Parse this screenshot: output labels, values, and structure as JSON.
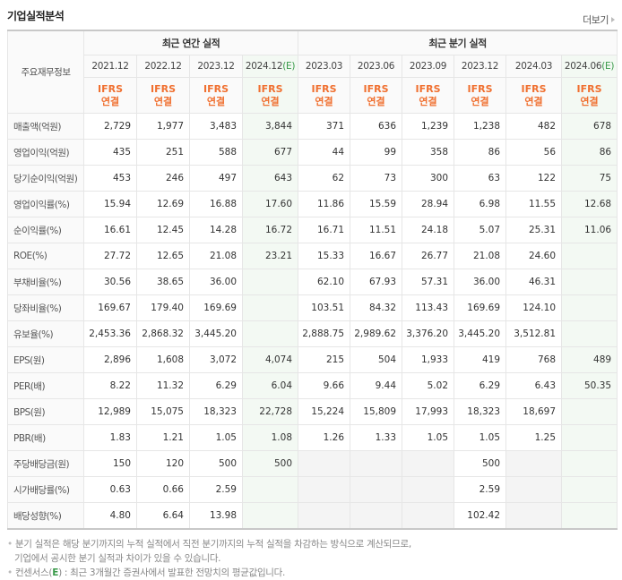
{
  "header": {
    "title": "기업실적분석",
    "more_label": "더보기"
  },
  "table": {
    "label_header": "주요재무정보",
    "groups": {
      "annual": "최근 연간 실적",
      "quarterly": "최근 분기 실적"
    },
    "annual_periods": [
      {
        "date": "2021.12",
        "est": ""
      },
      {
        "date": "2022.12",
        "est": ""
      },
      {
        "date": "2023.12",
        "est": ""
      },
      {
        "date": "2024.12",
        "est": "(E)"
      }
    ],
    "quarterly_periods": [
      {
        "date": "2023.03",
        "est": ""
      },
      {
        "date": "2023.06",
        "est": ""
      },
      {
        "date": "2023.09",
        "est": ""
      },
      {
        "date": "2023.12",
        "est": ""
      },
      {
        "date": "2024.03",
        "est": ""
      },
      {
        "date": "2024.06",
        "est": "(E)"
      }
    ],
    "ifrs_label": "IFRS",
    "basis_label": "연결",
    "rows": [
      {
        "label": "매출액(억원)",
        "v": [
          "2,729",
          "1,977",
          "3,483",
          "3,844",
          "371",
          "636",
          "1,239",
          "1,238",
          "482",
          "678"
        ]
      },
      {
        "label": "영업이익(억원)",
        "v": [
          "435",
          "251",
          "588",
          "677",
          "44",
          "99",
          "358",
          "86",
          "56",
          "86"
        ]
      },
      {
        "label": "당기순이익(억원)",
        "v": [
          "453",
          "246",
          "497",
          "643",
          "62",
          "73",
          "300",
          "63",
          "122",
          "75"
        ]
      },
      {
        "label": "영업이익률(%)",
        "v": [
          "15.94",
          "12.69",
          "16.88",
          "17.60",
          "11.86",
          "15.59",
          "28.94",
          "6.98",
          "11.55",
          "12.68"
        ]
      },
      {
        "label": "순이익률(%)",
        "v": [
          "16.61",
          "12.45",
          "14.28",
          "16.72",
          "16.71",
          "11.51",
          "24.18",
          "5.07",
          "25.31",
          "11.06"
        ]
      },
      {
        "label": "ROE(%)",
        "v": [
          "27.72",
          "12.65",
          "21.08",
          "23.21",
          "15.33",
          "16.67",
          "26.77",
          "21.08",
          "24.60",
          ""
        ]
      },
      {
        "label": "부채비율(%)",
        "v": [
          "30.56",
          "38.65",
          "36.00",
          "",
          "62.10",
          "67.93",
          "57.31",
          "36.00",
          "46.31",
          ""
        ]
      },
      {
        "label": "당좌비율(%)",
        "v": [
          "169.67",
          "179.40",
          "169.69",
          "",
          "103.51",
          "84.32",
          "113.43",
          "169.69",
          "124.10",
          ""
        ]
      },
      {
        "label": "유보율(%)",
        "v": [
          "2,453.36",
          "2,868.32",
          "3,445.20",
          "",
          "2,888.75",
          "2,989.62",
          "3,376.20",
          "3,445.20",
          "3,512.81",
          ""
        ]
      },
      {
        "label": "EPS(원)",
        "v": [
          "2,896",
          "1,608",
          "3,072",
          "4,074",
          "215",
          "504",
          "1,933",
          "419",
          "768",
          "489"
        ]
      },
      {
        "label": "PER(배)",
        "v": [
          "8.22",
          "11.32",
          "6.29",
          "6.04",
          "9.66",
          "9.44",
          "5.02",
          "6.29",
          "6.43",
          "50.35"
        ]
      },
      {
        "label": "BPS(원)",
        "v": [
          "12,989",
          "15,075",
          "18,323",
          "22,728",
          "15,224",
          "15,809",
          "17,993",
          "18,323",
          "18,697",
          ""
        ]
      },
      {
        "label": "PBR(배)",
        "v": [
          "1.83",
          "1.21",
          "1.05",
          "1.08",
          "1.26",
          "1.33",
          "1.05",
          "1.05",
          "1.25",
          ""
        ]
      },
      {
        "label": "주당배당금(원)",
        "v": [
          "150",
          "120",
          "500",
          "500",
          "",
          "",
          "",
          "500",
          "",
          ""
        ]
      },
      {
        "label": "시가배당률(%)",
        "v": [
          "0.63",
          "0.66",
          "2.59",
          "",
          "",
          "",
          "",
          "2.59",
          "",
          ""
        ]
      },
      {
        "label": "배당성향(%)",
        "v": [
          "4.80",
          "6.64",
          "13.98",
          "",
          "",
          "",
          "",
          "102.42",
          "",
          ""
        ]
      }
    ]
  },
  "notes": {
    "line1": "분기 실적은 해당 분기까지의 누적 실적에서 직전 분기까지의 누적 실적을 차감하는 방식으로 계산되므로,",
    "line2": "기업에서 공시한 분기 실적과 차이가 있을 수 있습니다.",
    "line3_prefix": "컨센서스(",
    "line3_e": "E",
    "line3_suffix": ") : 최근 3개월간 증권사에서 발표한 전망치의 평균값입니다."
  }
}
